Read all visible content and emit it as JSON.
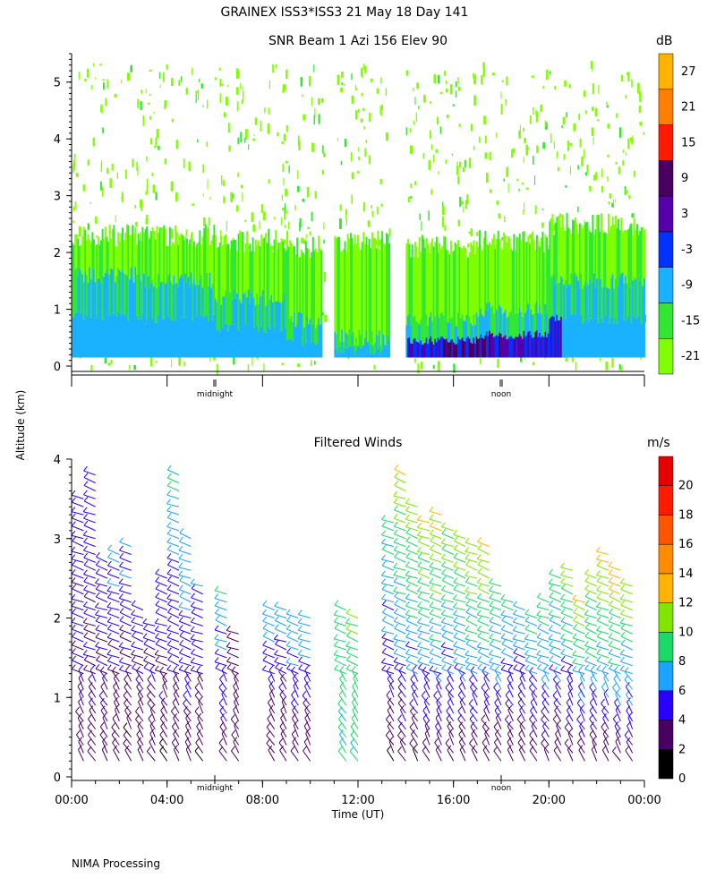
{
  "header": {
    "title": "GRAINEX ISS3*ISS3  21 May 18 Day 141"
  },
  "altitude_label": "Altitude (km)",
  "footer": {
    "processing": "NIMA Processing"
  },
  "colors": {
    "snr_scale": [
      "#7fff00",
      "#33e633",
      "#1ab2ff",
      "#0033ff",
      "#5500aa",
      "#4a0060",
      "#ff1a00",
      "#ff8000",
      "#ffb300"
    ],
    "wind_scale": [
      "#000000",
      "#4a0060",
      "#2a00ff",
      "#1aa3ff",
      "#1ad966",
      "#7fe600",
      "#ffb300",
      "#ff8c00",
      "#ff5500",
      "#ff1a00",
      "#e60000"
    ]
  },
  "chart_data": [
    {
      "type": "heatmap",
      "title": "SNR Beam 1 Azi 156 Elev 90",
      "ylabel": "Altitude (km)",
      "ylim": [
        0,
        5.5
      ],
      "yticks": [
        "0",
        "1",
        "2",
        "3",
        "4",
        "5"
      ],
      "xlim_hours": [
        0,
        24
      ],
      "day_markers": [
        {
          "hour": 6,
          "label": "midnight"
        },
        {
          "hour": 18,
          "label": "noon"
        }
      ],
      "colorbar": {
        "unit": "dB",
        "levels": [
          "-21",
          "-15",
          "-9",
          "-3",
          "3",
          "9",
          "15",
          "21",
          "27"
        ]
      },
      "layers": [
        {
          "start_hour": 0.0,
          "end_hour": 3.0,
          "top_km": 2.3,
          "strong_top_km": 1.6
        },
        {
          "start_hour": 3.0,
          "end_hour": 6.0,
          "top_km": 2.3,
          "strong_top_km": 1.5
        },
        {
          "start_hour": 6.0,
          "end_hour": 9.0,
          "top_km": 2.2,
          "strong_top_km": 1.2
        },
        {
          "start_hour": 9.0,
          "end_hour": 10.5,
          "top_km": 2.1,
          "strong_top_km": 0.8
        },
        {
          "start_hour": 11.0,
          "end_hour": 13.3,
          "top_km": 2.2,
          "strong_top_km": 0.5
        },
        {
          "start_hour": 14.0,
          "end_hour": 17.0,
          "top_km": 2.1,
          "strong_top_km": 0.8
        },
        {
          "start_hour": 17.0,
          "end_hour": 20.0,
          "top_km": 2.2,
          "strong_top_km": 1.0
        },
        {
          "start_hour": 20.0,
          "end_hour": 24.0,
          "top_km": 2.5,
          "strong_top_km": 1.5
        }
      ]
    },
    {
      "type": "scatter",
      "title": "Filtered Winds",
      "xlabel": "Time (UT)",
      "ylabel": "Altitude (km)",
      "ylim": [
        0,
        4
      ],
      "yticks": [
        "0",
        "1",
        "2",
        "3",
        "4"
      ],
      "xticks": [
        "00:00",
        "04:00",
        "08:00",
        "12:00",
        "16:00",
        "20:00",
        "00:00"
      ],
      "day_markers": [
        {
          "hour": 6,
          "label": "midnight"
        },
        {
          "hour": 18,
          "label": "noon"
        }
      ],
      "colorbar": {
        "unit": "m/s",
        "levels": [
          "0",
          "2",
          "4",
          "6",
          "8",
          "10",
          "12",
          "14",
          "16",
          "18",
          "20"
        ]
      },
      "profiles": [
        {
          "hour": 0.5,
          "max_km": 3.6,
          "speed_low": 3,
          "speed_high": 5
        },
        {
          "hour": 1.0,
          "max_km": 3.9,
          "speed_low": 3,
          "speed_high": 5
        },
        {
          "hour": 1.5,
          "max_km": 2.8,
          "speed_low": 3,
          "speed_high": 5
        },
        {
          "hour": 2.0,
          "max_km": 2.9,
          "speed_low": 2,
          "speed_high": 6
        },
        {
          "hour": 2.5,
          "max_km": 3.0,
          "speed_low": 2,
          "speed_high": 6
        },
        {
          "hour": 3.0,
          "max_km": 2.2,
          "speed_low": 2,
          "speed_high": 5
        },
        {
          "hour": 3.5,
          "max_km": 2.0,
          "speed_low": 2,
          "speed_high": 5
        },
        {
          "hour": 4.0,
          "max_km": 2.6,
          "speed_low": 2,
          "speed_high": 6
        },
        {
          "hour": 4.5,
          "max_km": 3.9,
          "speed_low": 2,
          "speed_high": 8
        },
        {
          "hour": 5.0,
          "max_km": 3.1,
          "speed_low": 2,
          "speed_high": 8
        },
        {
          "hour": 5.5,
          "max_km": 2.5,
          "speed_low": 2,
          "speed_high": 6
        },
        {
          "hour": 6.5,
          "max_km": 2.4,
          "speed_low": 2,
          "speed_high": 8
        },
        {
          "hour": 7.0,
          "max_km": 1.9,
          "speed_low": 2,
          "speed_high": 4
        },
        {
          "hour": 8.5,
          "max_km": 2.2,
          "speed_low": 2,
          "speed_high": 7
        },
        {
          "hour": 9.0,
          "max_km": 2.2,
          "speed_low": 2,
          "speed_high": 7
        },
        {
          "hour": 9.5,
          "max_km": 2.1,
          "speed_low": 2,
          "speed_high": 8
        },
        {
          "hour": 10.0,
          "max_km": 2.1,
          "speed_low": 2,
          "speed_high": 8
        },
        {
          "hour": 11.5,
          "max_km": 2.2,
          "speed_low": 8,
          "speed_high": 10
        },
        {
          "hour": 12.0,
          "max_km": 2.1,
          "speed_low": 8,
          "speed_high": 10
        },
        {
          "hour": 13.5,
          "max_km": 3.3,
          "speed_low": 2,
          "speed_high": 9
        },
        {
          "hour": 14.0,
          "max_km": 3.9,
          "speed_low": 2,
          "speed_high": 12
        },
        {
          "hour": 14.5,
          "max_km": 3.5,
          "speed_low": 2,
          "speed_high": 12
        },
        {
          "hour": 15.0,
          "max_km": 3.3,
          "speed_low": 2,
          "speed_high": 12
        },
        {
          "hour": 15.5,
          "max_km": 3.4,
          "speed_low": 2,
          "speed_high": 13
        },
        {
          "hour": 16.0,
          "max_km": 3.2,
          "speed_low": 2,
          "speed_high": 11
        },
        {
          "hour": 16.5,
          "max_km": 3.1,
          "speed_low": 2,
          "speed_high": 11
        },
        {
          "hour": 17.0,
          "max_km": 3.0,
          "speed_low": 2,
          "speed_high": 12
        },
        {
          "hour": 17.5,
          "max_km": 3.0,
          "speed_low": 2,
          "speed_high": 12
        },
        {
          "hour": 18.0,
          "max_km": 2.5,
          "speed_low": 2,
          "speed_high": 10
        },
        {
          "hour": 18.5,
          "max_km": 2.3,
          "speed_low": 2,
          "speed_high": 8
        },
        {
          "hour": 19.0,
          "max_km": 2.2,
          "speed_low": 2,
          "speed_high": 8
        },
        {
          "hour": 19.5,
          "max_km": 2.1,
          "speed_low": 2,
          "speed_high": 9
        },
        {
          "hour": 20.0,
          "max_km": 2.3,
          "speed_low": 2,
          "speed_high": 10
        },
        {
          "hour": 20.5,
          "max_km": 2.6,
          "speed_low": 2,
          "speed_high": 10
        },
        {
          "hour": 21.0,
          "max_km": 2.7,
          "speed_low": 2,
          "speed_high": 11
        },
        {
          "hour": 21.5,
          "max_km": 2.3,
          "speed_low": 2,
          "speed_high": 12
        },
        {
          "hour": 22.0,
          "max_km": 2.6,
          "speed_low": 2,
          "speed_high": 12
        },
        {
          "hour": 22.5,
          "max_km": 2.9,
          "speed_low": 2,
          "speed_high": 13
        },
        {
          "hour": 23.0,
          "max_km": 2.7,
          "speed_low": 2,
          "speed_high": 13
        },
        {
          "hour": 23.5,
          "max_km": 2.5,
          "speed_low": 2,
          "speed_high": 12
        }
      ]
    }
  ]
}
